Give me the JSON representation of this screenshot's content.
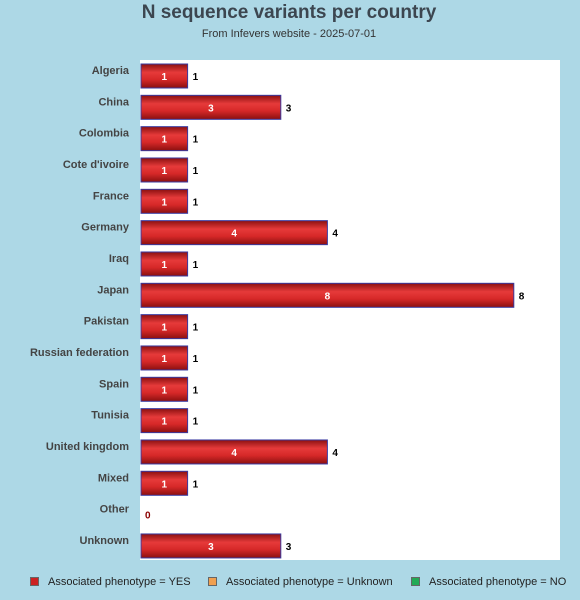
{
  "chart_data": {
    "type": "bar",
    "orientation": "horizontal",
    "title": "N sequence variants per country",
    "subtitle": "From Infevers website - 2025-07-01",
    "categories": [
      "Algeria",
      "China",
      "Colombia",
      "Cote d'ivoire",
      "France",
      "Germany",
      "Iraq",
      "Japan",
      "Pakistan",
      "Russian federation",
      "Spain",
      "Tunisia",
      "United kingdom",
      "Mixed",
      "Other",
      "Unknown"
    ],
    "series": [
      {
        "name": "Associated phenotype = YES",
        "color": "#cc2222",
        "values": [
          1,
          3,
          1,
          1,
          1,
          4,
          1,
          8,
          1,
          1,
          1,
          1,
          4,
          1,
          0,
          3
        ]
      },
      {
        "name": "Associated phenotype = Unknown",
        "color": "#f0a050",
        "values": [
          0,
          0,
          0,
          0,
          0,
          0,
          0,
          0,
          0,
          0,
          0,
          0,
          0,
          0,
          0,
          0
        ]
      },
      {
        "name": "Associated phenotype = NO",
        "color": "#22aa55",
        "values": [
          0,
          0,
          0,
          0,
          0,
          0,
          0,
          0,
          0,
          0,
          0,
          0,
          0,
          0,
          0,
          0
        ]
      }
    ],
    "totals": [
      1,
      3,
      1,
      1,
      1,
      4,
      1,
      8,
      1,
      1,
      1,
      1,
      4,
      1,
      0,
      3
    ],
    "xlim": [
      0,
      9
    ],
    "grid": false,
    "legend": "bottom",
    "xlabel": "",
    "ylabel": ""
  }
}
